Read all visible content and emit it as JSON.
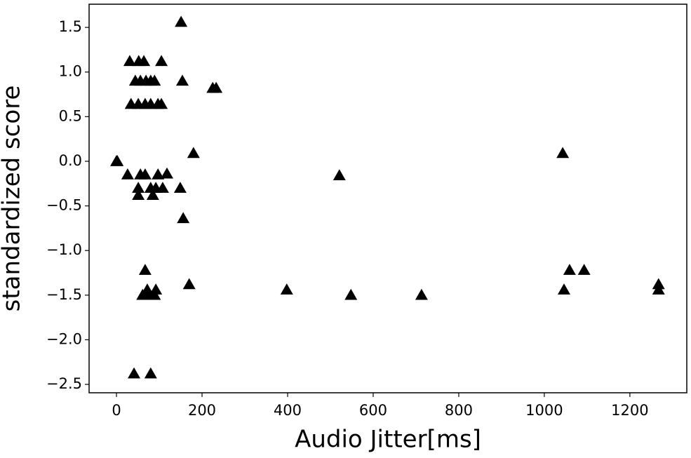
{
  "chart_data": {
    "type": "scatter",
    "x_label": "Audio Jitter[ms]",
    "y_label": "standardized score",
    "marker": "triangle",
    "color": "#000000",
    "x": [
      0,
      2,
      151,
      31,
      52,
      64,
      105,
      44,
      56,
      69,
      80,
      89,
      154,
      34,
      51,
      67,
      80,
      97,
      105,
      225,
      233,
      180,
      1043,
      26,
      56,
      67,
      97,
      118,
      521,
      51,
      80,
      92,
      108,
      149,
      51,
      85,
      156,
      67,
      1059,
      1093,
      170,
      1267,
      72,
      92,
      398,
      1046,
      1267,
      61,
      69,
      77,
      89,
      548,
      713,
      41,
      80
    ],
    "y": [
      0,
      0,
      1.56,
      1.12,
      1.12,
      1.12,
      1.12,
      0.9,
      0.9,
      0.9,
      0.9,
      0.9,
      0.9,
      0.64,
      0.64,
      0.64,
      0.64,
      0.64,
      0.64,
      0.82,
      0.82,
      0.09,
      0.09,
      -0.15,
      -0.15,
      -0.15,
      -0.15,
      -0.14,
      -0.16,
      -0.3,
      -0.3,
      -0.3,
      -0.3,
      -0.3,
      -0.38,
      -0.38,
      -0.64,
      -1.22,
      -1.22,
      -1.22,
      -1.38,
      -1.38,
      -1.44,
      -1.44,
      -1.44,
      -1.44,
      -1.44,
      -1.5,
      -1.5,
      -1.5,
      -1.5,
      -1.5,
      -1.5,
      -2.38,
      -2.38
    ],
    "xlim": [
      -64,
      1333
    ],
    "ylim": [
      -2.594,
      1.76
    ],
    "xticks": [
      0,
      200,
      400,
      600,
      800,
      1000,
      1200
    ],
    "yticks": [
      {
        "value": -2.5,
        "label": "−2.5"
      },
      {
        "value": -2,
        "label": "−2.0"
      },
      {
        "value": -1.5,
        "label": "−1.5"
      },
      {
        "value": -1,
        "label": "−1.0"
      },
      {
        "value": -0.5,
        "label": "−0.5"
      },
      {
        "value": 0,
        "label": "0.0"
      },
      0.5,
      {
        "value": 1,
        "label": "1.0"
      },
      1.5
    ],
    "grid": false
  }
}
